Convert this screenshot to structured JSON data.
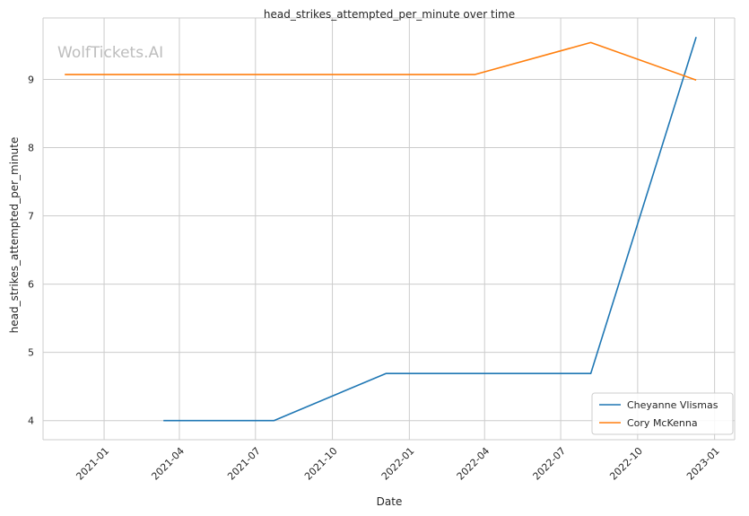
{
  "watermark": "WolfTickets.AI",
  "chart_data": {
    "type": "line",
    "title": "head_strikes_attempted_per_minute over time",
    "xlabel": "Date",
    "ylabel": "head_strikes_attempted_per_minute",
    "x_axis_type": "date",
    "xlim": [
      "2020-10-20",
      "2023-01-25"
    ],
    "ylim": [
      3.72,
      9.9
    ],
    "x_ticks": [
      "2021-01-01",
      "2021-04-01",
      "2021-07-01",
      "2021-10-01",
      "2022-01-01",
      "2022-04-01",
      "2022-07-01",
      "2022-10-01",
      "2023-01-01"
    ],
    "x_tick_labels": [
      "2021-01",
      "2021-04",
      "2021-07",
      "2021-10",
      "2022-01",
      "2022-04",
      "2022-07",
      "2022-10",
      "2023-01"
    ],
    "y_ticks": [
      4,
      5,
      6,
      7,
      8,
      9
    ],
    "y_tick_labels": [
      "4",
      "5",
      "6",
      "7",
      "8",
      "9"
    ],
    "grid": true,
    "legend_position": "bottom-right",
    "series": [
      {
        "name": "Cheyanne Vlismas",
        "color": "#1f77b4",
        "x": [
          "2021-03-13",
          "2021-07-23",
          "2021-12-04",
          "2022-08-06",
          "2022-12-10"
        ],
        "y": [
          4.0,
          4.0,
          4.69,
          4.69,
          9.62
        ]
      },
      {
        "name": "Cory McKenna",
        "color": "#ff7f0e",
        "x": [
          "2020-11-15",
          "2022-03-20",
          "2022-08-06",
          "2022-12-10"
        ],
        "y": [
          9.07,
          9.07,
          9.54,
          8.99
        ]
      }
    ]
  }
}
